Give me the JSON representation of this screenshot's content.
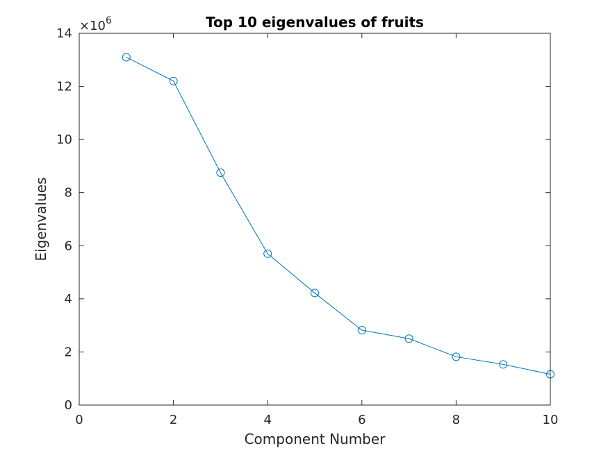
{
  "chart_data": {
    "type": "line",
    "title": "Top 10 eigenvalues of fruits",
    "xlabel": "Component Number",
    "ylabel": "Eigenvalues",
    "y_exponent_base": "×10",
    "y_exponent_power": "6",
    "xlim": [
      0,
      10
    ],
    "ylim": [
      0,
      14
    ],
    "xticks": [
      0,
      2,
      4,
      6,
      8,
      10
    ],
    "yticks": [
      0,
      2,
      4,
      6,
      8,
      10,
      12,
      14
    ],
    "grid": false,
    "marker": "circle",
    "color": "#0072BD",
    "series": [
      {
        "x": [
          1,
          2,
          3,
          4,
          5,
          6,
          7,
          8,
          9,
          10
        ],
        "values": [
          13.1,
          12.2,
          8.75,
          5.7,
          4.22,
          2.82,
          2.5,
          1.82,
          1.53,
          1.16
        ]
      }
    ]
  }
}
